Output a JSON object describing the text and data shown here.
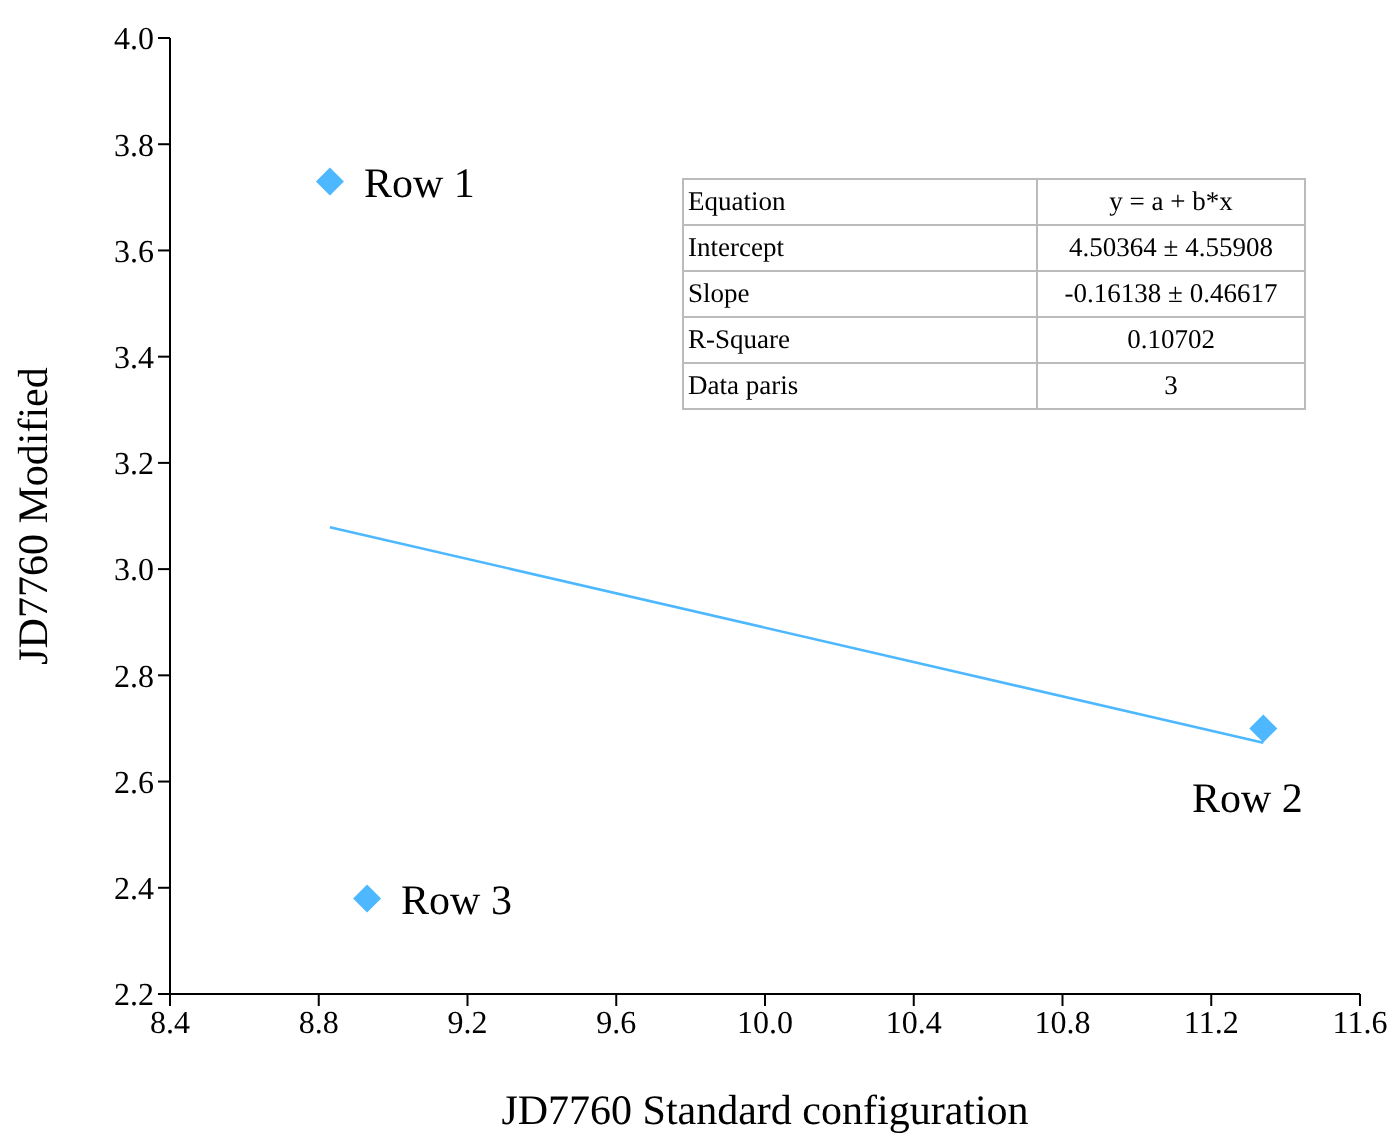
{
  "chart_data": {
    "type": "scatter",
    "xlabel": "JD7760 Standard configuration",
    "ylabel": "JD7760 Modified",
    "xlim": [
      8.4,
      11.6
    ],
    "xticks": [
      {
        "value": 8.4,
        "label": "8.4"
      },
      {
        "value": 8.8,
        "label": "8.8"
      },
      {
        "value": 9.2,
        "label": "9.2"
      },
      {
        "value": 9.6,
        "label": "9.6"
      },
      {
        "value": 10,
        "label": "10.0"
      },
      {
        "value": 10.4,
        "label": "10.4"
      },
      {
        "value": 10.8,
        "label": "10.8"
      },
      {
        "value": 11.2,
        "label": "11.2"
      },
      {
        "value": 11.6,
        "label": "11.6"
      }
    ],
    "ylim": [
      2.2,
      4.0
    ],
    "yticks": [
      {
        "value": 2.2,
        "label": "2.2"
      },
      {
        "value": 2.4,
        "label": "2.4"
      },
      {
        "value": 2.6,
        "label": "2.6"
      },
      {
        "value": 2.8,
        "label": "2.8"
      },
      {
        "value": 3,
        "label": "3.0"
      },
      {
        "value": 3.2,
        "label": "3.2"
      },
      {
        "value": 3.4,
        "label": "3.4"
      },
      {
        "value": 3.6,
        "label": "3.6"
      },
      {
        "value": 3.8,
        "label": "3.8"
      },
      {
        "value": 4,
        "label": "4.0"
      }
    ],
    "series": [
      {
        "type": "scatter",
        "color": "#4db8ff",
        "marker": "diamond",
        "x": [
          8.83,
          11.34,
          8.93
        ],
        "values": [
          3.73,
          2.7,
          2.38
        ]
      },
      {
        "type": "line",
        "color": "#4db8ff",
        "marker": "none",
        "x": [
          8.83,
          11.34
        ],
        "values": [
          3.079,
          2.673
        ]
      }
    ],
    "annotations": [
      {
        "text": "Row 1",
        "x": 8.83,
        "y": 3.73
      },
      {
        "text": "Row 2",
        "x": 11.34,
        "y": 2.7
      },
      {
        "text": "Row 3",
        "x": 8.93,
        "y": 2.38
      },
      "Equation",
      "y = a + b*x",
      "Intercept",
      "4.50364 ± 4.55908",
      "Slope",
      "-0.16138 ± 0.46617",
      "R-Square",
      "0.10702",
      "Data paris",
      "3"
    ]
  }
}
